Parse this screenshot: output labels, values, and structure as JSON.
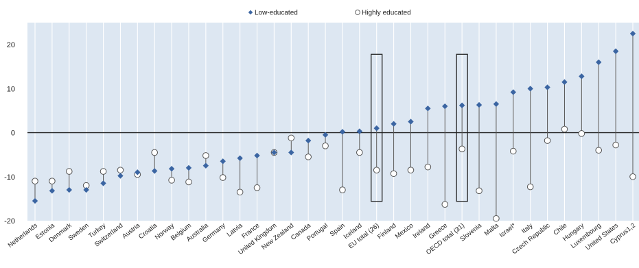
{
  "chart_data": {
    "type": "scatter",
    "title": "",
    "xlabel": "",
    "ylabel": "",
    "ylim": [
      -20,
      25
    ],
    "yticks": [
      -20,
      -10,
      0,
      10,
      20
    ],
    "grid": "vertical",
    "legend_position": "top-center",
    "categories": [
      "Netherlands",
      "Estonia",
      "Denmark",
      "Sweden",
      "Turkey",
      "Switzerland",
      "Austria",
      "Croatia",
      "Norway",
      "Belgium",
      "Australia",
      "Germany",
      "Latvia",
      "France",
      "United Kingdom",
      "New Zealand",
      "Canada",
      "Portugal",
      "Spain",
      "Iceland",
      "EU total (26)",
      "Finland",
      "Mexico",
      "Ireland",
      "Greece",
      "OECD total (31)",
      "Slovenia",
      "Malta",
      "Israel*",
      "Italy",
      "Czech Republic",
      "Chile",
      "Hungary",
      "Luxembourg",
      "United States",
      "Cyprus1,2"
    ],
    "highlighted_categories": [
      "EU total (26)",
      "OECD total (31)"
    ],
    "series": [
      {
        "name": "Low-educated",
        "marker": "diamond",
        "color": "#3b65a2",
        "values": [
          -15.5,
          -13.2,
          -13.0,
          -13.0,
          -11.5,
          -9.8,
          -9.0,
          -8.7,
          -8.2,
          -8.0,
          -7.5,
          -6.5,
          -5.8,
          -5.2,
          -4.5,
          -4.5,
          -1.8,
          -0.5,
          0.2,
          0.3,
          1.0,
          2.0,
          2.5,
          5.5,
          6.0,
          6.2,
          6.3,
          6.5,
          9.2,
          10.0,
          10.3,
          11.5,
          12.8,
          16.0,
          18.5,
          22.5
        ]
      },
      {
        "name": "Highly educated",
        "marker": "circle",
        "color": "#ffffff",
        "values": [
          -11.0,
          -11.0,
          -8.8,
          -12.0,
          -8.8,
          -8.5,
          -9.5,
          -4.5,
          -10.8,
          -11.2,
          -5.2,
          -10.2,
          -13.5,
          -12.5,
          -4.5,
          -1.2,
          -5.5,
          -3.0,
          -13.0,
          -4.5,
          -8.5,
          -9.3,
          -8.5,
          -7.8,
          -16.3,
          -3.7,
          -13.2,
          -19.5,
          -4.2,
          -12.3,
          -1.8,
          0.8,
          -0.2,
          -4.0,
          -2.8,
          -10.0
        ]
      }
    ]
  }
}
